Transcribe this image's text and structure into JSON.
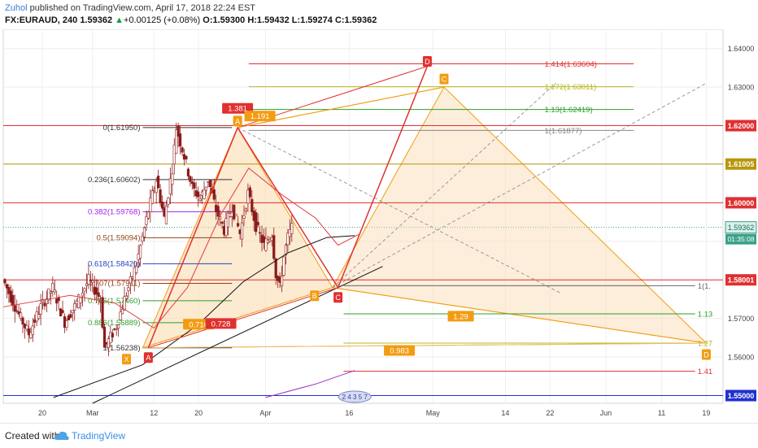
{
  "header": {
    "author": "Zuhol",
    "published_text": "published on TradingView.com, April 17, 2018 22:24 EST",
    "symbol": "FX:EURAUD, 240",
    "price": "1.59362",
    "change_arrow": "▲",
    "change": "+0.00125 (+0.08%)",
    "ohlc": "O:1.59300 H:1.59432 L:1.59274 C:1.59362",
    "up_color": "#1a9e3e"
  },
  "footer": {
    "created_with": "Created with",
    "brand": "TradingView",
    "logo_icon": "tradingview-cloud-icon"
  },
  "chart_data": {
    "type": "line",
    "title": "",
    "xlabel": "",
    "ylabel": "",
    "ylim": [
      1.548,
      1.645
    ],
    "y_ticks": [
      "1.64000",
      "1.63000",
      "1.62000",
      "1.61005",
      "1.60000",
      "1.59362",
      "1.58001",
      "1.57000",
      "1.56000",
      "1.55000"
    ],
    "x_ticks": [
      "20",
      "Mar",
      "12",
      "20",
      "Apr",
      "16",
      "May",
      "14",
      "22",
      "Jun",
      "11",
      "19"
    ],
    "grid": true,
    "price_label": "1.59362",
    "countdown_label": "01:35:08",
    "axis_highlights": [
      {
        "value": 1.62,
        "label": "1.62000",
        "color": "#e03030"
      },
      {
        "value": 1.61005,
        "label": "1.61005",
        "color": "#b8960c"
      },
      {
        "value": 1.6,
        "label": "1.60000",
        "color": "#e03030"
      },
      {
        "value": 1.58001,
        "label": "1.58001",
        "color": "#e03030"
      },
      {
        "value": 1.55,
        "label": "1.55000",
        "color": "#2030d0"
      }
    ],
    "horizontal_levels": [
      {
        "y": 1.62,
        "color": "#e03030"
      },
      {
        "y": 1.61005,
        "color": "#b8960c"
      },
      {
        "y": 1.6,
        "color": "#e03030"
      },
      {
        "y": 1.58001,
        "color": "#e03030"
      },
      {
        "y": 1.55,
        "color": "#2030d0"
      }
    ],
    "fib_retracement": [
      {
        "label": "0(1.61950)",
        "y": 1.6195,
        "color": "#333333"
      },
      {
        "label": "0.236(1.60602)",
        "y": 1.60602,
        "color": "#333333"
      },
      {
        "label": "0.382(1.59768)",
        "y": 1.59768,
        "color": "#a020f0"
      },
      {
        "label": "0.5(1.59094)",
        "y": 1.59094,
        "color": "#8b4513"
      },
      {
        "label": "0.618(1.58420)",
        "y": 1.5842,
        "color": "#2040c0"
      },
      {
        "label": "0.707(1.57911)",
        "y": 1.57911,
        "color": "#8b4513"
      },
      {
        "label": "0.786(1.57460)",
        "y": 1.5746,
        "color": "#2e9e2e"
      },
      {
        "label": "0.886(1.56889)",
        "y": 1.56889,
        "color": "#2e9e2e"
      },
      {
        "label": "1(1.56238)",
        "y": 1.56238,
        "color": "#333333"
      }
    ],
    "fib_extension": [
      {
        "label": "1.414(1.63604)",
        "y": 1.63604,
        "color": "#e03030"
      },
      {
        "label": "1.272(1.63011)",
        "y": 1.63011,
        "color": "#b8b820"
      },
      {
        "label": "1.13(1.62419)",
        "y": 1.62419,
        "color": "#2e9e2e"
      },
      {
        "label": "1(1.61877)",
        "y": 1.61877,
        "color": "#888888"
      }
    ],
    "right_fib_labels": [
      {
        "label": "1(1.",
        "y": 1.5785,
        "color": "#666666"
      },
      {
        "label": "1.13",
        "y": 1.5712,
        "color": "#2e9e2e"
      },
      {
        "label": "1.27",
        "y": 1.5636,
        "color": "#b8b820"
      },
      {
        "label": "1.41",
        "y": 1.5563,
        "color": "#e03030"
      }
    ],
    "pattern_points": [
      {
        "name": "X",
        "x": "2018-03-10",
        "y": 1.5624,
        "color": "#f39c12"
      },
      {
        "name": "A",
        "x": "2018-03-27",
        "y": 1.6195,
        "color": "#f39c12"
      },
      {
        "name": "B",
        "x": "2018-04-13",
        "y": 1.578,
        "color": "#f39c12"
      },
      {
        "name": "C",
        "x": "2018-05-03",
        "y": 1.63,
        "color": "#f39c12"
      },
      {
        "name": "D",
        "x": "2018-06-19",
        "y": 1.5636,
        "color": "#f39c12"
      }
    ],
    "abcd_points": [
      {
        "name": "A",
        "x": "2018-03-11",
        "y": 1.5624,
        "color": "#e03030"
      },
      {
        "name": "B",
        "x": "2018-03-27",
        "y": 1.6195,
        "color": "#e03030"
      },
      {
        "name": "C",
        "x": "2018-04-14",
        "y": 1.578,
        "color": "#e03030"
      },
      {
        "name": "D",
        "x": "2018-04-30",
        "y": 1.6354,
        "color": "#e03030"
      }
    ],
    "ratio_labels": [
      {
        "label": "1.381",
        "color": "#e03030"
      },
      {
        "label": "1.191",
        "color": "#f39c12"
      },
      {
        "label": "0.716",
        "color": "#f39c12"
      },
      {
        "label": "0.728",
        "color": "#e03030"
      },
      {
        "label": "1.29",
        "color": "#f39c12"
      },
      {
        "label": "0.983",
        "color": "#f39c12"
      }
    ],
    "event_icons_label": "2 4 3 5 7",
    "colors": {
      "candle": "#8b1a1a",
      "ma_long": "#111111",
      "ma_short": "#e04040",
      "purple_ma": "#9b30c8",
      "pattern_fill": "#f9d9ac",
      "pattern_line": "#f39c12",
      "abcd_line": "#e03030"
    }
  }
}
